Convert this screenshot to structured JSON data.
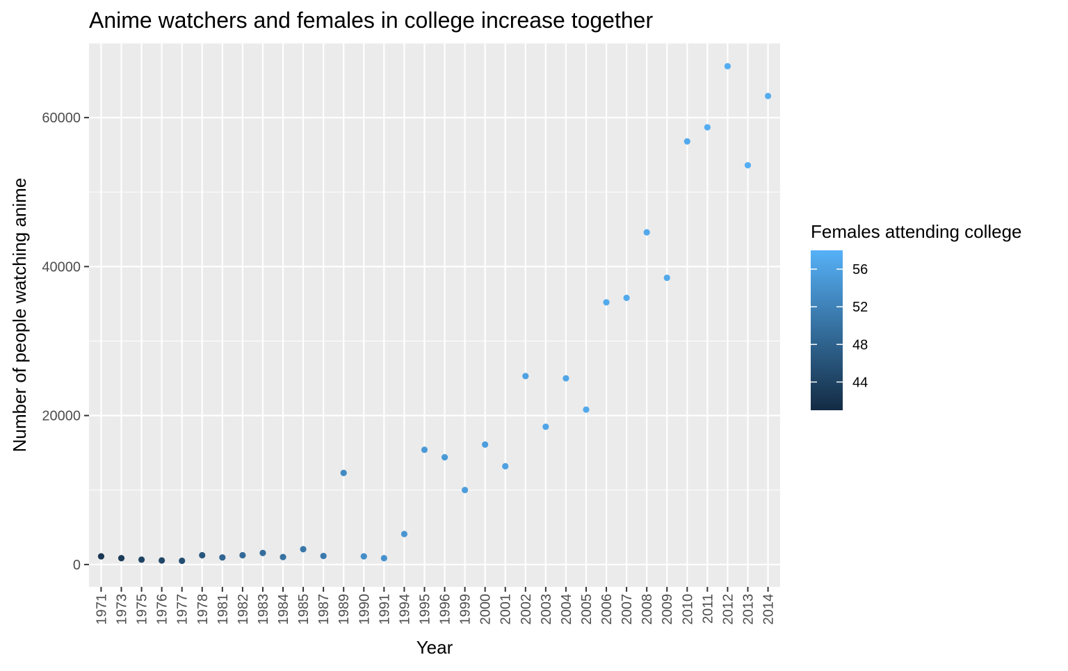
{
  "chart_data": {
    "type": "scatter",
    "title": "Anime watchers and females in college increase together",
    "xlabel": "Year",
    "ylabel": "Number of people watching anime",
    "x_type": "discrete",
    "categories": [
      "1971",
      "1973",
      "1975",
      "1976",
      "1977",
      "1978",
      "1981",
      "1982",
      "1983",
      "1984",
      "1985",
      "1987",
      "1989",
      "1990",
      "1991",
      "1994",
      "1995",
      "1996",
      "1999",
      "2000",
      "2001",
      "2002",
      "2003",
      "2004",
      "2005",
      "2006",
      "2007",
      "2008",
      "2009",
      "2010",
      "2011",
      "2012",
      "2013",
      "2014"
    ],
    "values": [
      1100,
      850,
      650,
      550,
      500,
      1250,
      950,
      1250,
      1550,
      1000,
      2050,
      1150,
      12300,
      1100,
      850,
      4100,
      15400,
      14400,
      10000,
      16100,
      13200,
      25300,
      18500,
      25000,
      20800,
      35200,
      35800,
      44600,
      38500,
      56800,
      58700,
      66900,
      53600,
      62900
    ],
    "color_values": [
      42.5,
      43.0,
      44.0,
      44.5,
      45.5,
      46.5,
      48.5,
      49.0,
      49.5,
      50.0,
      50.5,
      51.0,
      53.0,
      53.5,
      54.0,
      54.5,
      55.0,
      55.0,
      55.5,
      55.5,
      56.0,
      56.0,
      56.5,
      56.5,
      57.0,
      57.0,
      57.0,
      57.0,
      57.0,
      57.0,
      57.5,
      57.5,
      57.5,
      57.5
    ],
    "ylim": [
      -3000,
      70000
    ],
    "y_ticks": [
      0,
      20000,
      40000,
      60000
    ],
    "y_tick_labels": [
      "0",
      "20000",
      "40000",
      "60000"
    ],
    "grid": true,
    "legend": {
      "title": "Females attending college",
      "placement": "right",
      "range": [
        41,
        58
      ],
      "ticks": [
        44,
        48,
        52,
        56
      ],
      "tick_labels": [
        "44",
        "48",
        "52",
        "56"
      ],
      "color_low": "#132B43",
      "color_high": "#56B1F7"
    },
    "panel_background": "#EBEBEB",
    "gridline_color": "#FFFFFF"
  }
}
